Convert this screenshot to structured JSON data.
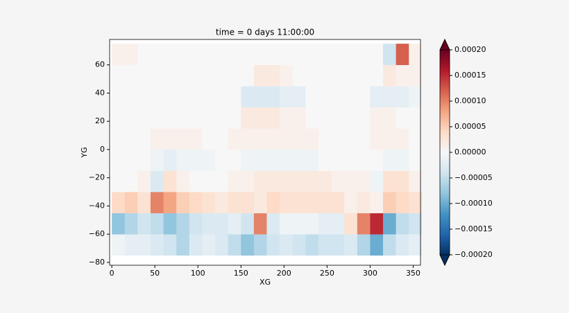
{
  "chart_data": {
    "type": "heatmap",
    "title": "time = 0 days 11:00:00",
    "x_label": "XG",
    "y_label": "YG",
    "x_edges": [
      0,
      15,
      30,
      45,
      60,
      75,
      90,
      105,
      120,
      135,
      150,
      165,
      180,
      195,
      210,
      225,
      240,
      255,
      270,
      285,
      300,
      315,
      330,
      345,
      360
    ],
    "y_edges": [
      -75,
      -60,
      -45,
      -30,
      -15,
      0,
      15,
      30,
      45,
      60,
      75
    ],
    "values": [
      [
        -1e-05,
        -2e-05,
        -2e-05,
        -3e-05,
        -4e-05,
        -6e-05,
        -3e-05,
        -2e-05,
        -3e-05,
        -5e-05,
        -8e-05,
        -6e-05,
        -4e-05,
        -3e-05,
        -4e-05,
        -5e-05,
        -4e-05,
        -4e-05,
        -3e-05,
        -6e-05,
        -0.0001,
        -5e-05,
        -3e-05,
        -2e-05
      ],
      [
        -8e-05,
        -6e-05,
        -4e-05,
        -5e-05,
        -8e-05,
        -6e-05,
        -4e-05,
        -3e-05,
        -3e-05,
        -2e-05,
        -4e-05,
        0.0001,
        -3e-05,
        -1e-05,
        -1e-05,
        -1e-05,
        -2e-05,
        -2e-05,
        3e-05,
        0.0001,
        0.00015,
        -0.0001,
        -5e-05,
        -4e-05
      ],
      [
        4e-05,
        5e-05,
        3e-05,
        0.0001,
        8e-05,
        5e-05,
        4e-05,
        3e-05,
        2e-05,
        3e-05,
        3e-05,
        2e-05,
        4e-05,
        3e-05,
        3e-05,
        3e-05,
        3e-05,
        3e-05,
        1e-05,
        2e-05,
        1e-05,
        5e-05,
        4e-05,
        3e-05
      ],
      [
        0,
        0,
        1e-05,
        -3e-05,
        3e-05,
        1e-05,
        0,
        0,
        0,
        1e-05,
        1e-05,
        2e-05,
        2e-05,
        2e-05,
        2e-05,
        2e-05,
        2e-05,
        1e-05,
        1e-05,
        1e-05,
        -1e-05,
        3e-05,
        3e-05,
        1e-05
      ],
      [
        0,
        0,
        0,
        -1e-05,
        -2e-05,
        -1e-05,
        -1e-05,
        -1e-05,
        0,
        0,
        -1e-05,
        -1e-05,
        -1e-05,
        -1e-05,
        -1e-05,
        -1e-05,
        0,
        0,
        0,
        0,
        0,
        -1e-05,
        -1e-05,
        0
      ],
      [
        0,
        0,
        0,
        1e-05,
        1e-05,
        1e-05,
        1e-05,
        0,
        0,
        1e-05,
        1e-05,
        1e-05,
        1e-05,
        1e-05,
        1e-05,
        1e-05,
        0,
        0,
        0,
        0,
        1e-05,
        1e-05,
        1e-05,
        0
      ],
      [
        0,
        0,
        0,
        0,
        0,
        0,
        0,
        0,
        0,
        0,
        2e-05,
        2e-05,
        2e-05,
        1e-05,
        1e-05,
        0,
        0,
        0,
        0,
        0,
        1e-05,
        1e-05,
        0,
        0
      ],
      [
        0,
        0,
        0,
        0,
        0,
        0,
        0,
        0,
        0,
        0,
        -3e-05,
        -3e-05,
        -3e-05,
        -2e-05,
        -2e-05,
        0,
        0,
        0,
        0,
        0,
        -2e-05,
        -2e-05,
        -2e-05,
        -1e-05
      ],
      [
        0,
        0,
        0,
        0,
        0,
        0,
        0,
        0,
        0,
        0,
        0,
        2e-05,
        2e-05,
        1e-05,
        0,
        0,
        0,
        0,
        0,
        0,
        0,
        2e-05,
        1e-05,
        1e-05
      ],
      [
        1e-05,
        1e-05,
        0,
        0,
        0,
        0,
        0,
        0,
        0,
        0,
        0,
        0,
        0,
        0,
        0,
        0,
        0,
        0,
        0,
        0,
        0,
        -4e-05,
        0.00012,
        1e-05
      ]
    ],
    "xlim": [
      -2.5,
      358.5
    ],
    "ylim": [
      -82,
      78
    ],
    "xticks": [
      0,
      50,
      100,
      150,
      200,
      250,
      300,
      350
    ],
    "yticks": [
      {
        "value": -80,
        "label": "−80"
      },
      {
        "value": -60,
        "label": "−60"
      },
      {
        "value": -40,
        "label": "−40"
      },
      {
        "value": -20,
        "label": "−20"
      },
      0,
      20,
      40,
      60
    ],
    "colormap": "RdBu_r",
    "clim": [
      -0.0002,
      0.0002
    ],
    "cticks": [
      {
        "value": -0.0002,
        "label": "−0.00020"
      },
      {
        "value": -0.00015,
        "label": "−0.00015"
      },
      {
        "value": -0.0001,
        "label": "−0.00010"
      },
      {
        "value": -5e-05,
        "label": "−0.00005"
      },
      {
        "value": 0,
        "label": "0.00000"
      },
      {
        "value": 5e-05,
        "label": "0.00005"
      },
      {
        "value": 0.0001,
        "label": "0.00010"
      },
      {
        "value": 0.00015,
        "label": "0.00015"
      },
      {
        "value": 0.0002,
        "label": "0.00020"
      }
    ]
  }
}
